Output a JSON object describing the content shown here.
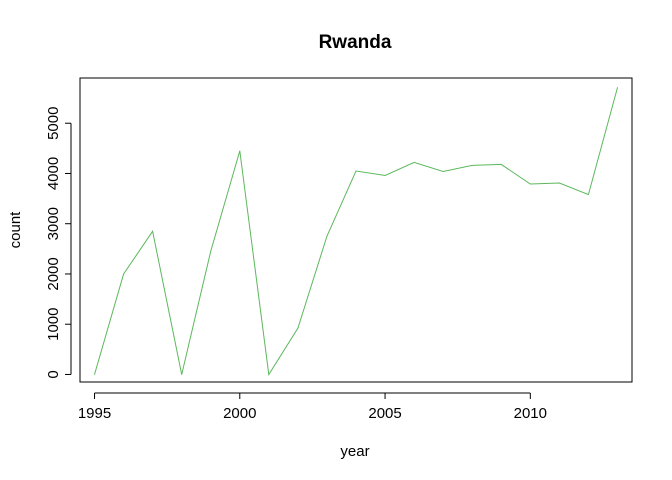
{
  "chart_data": {
    "type": "line",
    "title": "Rwanda",
    "xlabel": "year",
    "ylabel": "count",
    "xlim": [
      1994.5,
      2013.5
    ],
    "ylim": [
      -150,
      5900
    ],
    "x_ticks": [
      1995,
      2000,
      2005,
      2010
    ],
    "y_ticks": [
      0,
      1000,
      2000,
      3000,
      4000,
      5000
    ],
    "x_tick_labels": [
      "1995",
      "2000",
      "2005",
      "2010"
    ],
    "y_tick_labels": [
      "0",
      "1000",
      "2000",
      "3000",
      "4000",
      "5000"
    ],
    "grid": false,
    "legend": "none",
    "series": [
      {
        "color": "#5cb85c",
        "x": [
          1995,
          1996,
          1997,
          1998,
          1999,
          2000,
          2001,
          2002,
          2003,
          2004,
          2005,
          2006,
          2007,
          2008,
          2009,
          2010,
          2011,
          2012,
          2013
        ],
        "values": [
          0,
          2000,
          2850,
          0,
          2450,
          4450,
          0,
          920,
          2750,
          4050,
          3960,
          4220,
          4040,
          4160,
          4180,
          3790,
          3810,
          3580,
          5710
        ]
      }
    ]
  }
}
